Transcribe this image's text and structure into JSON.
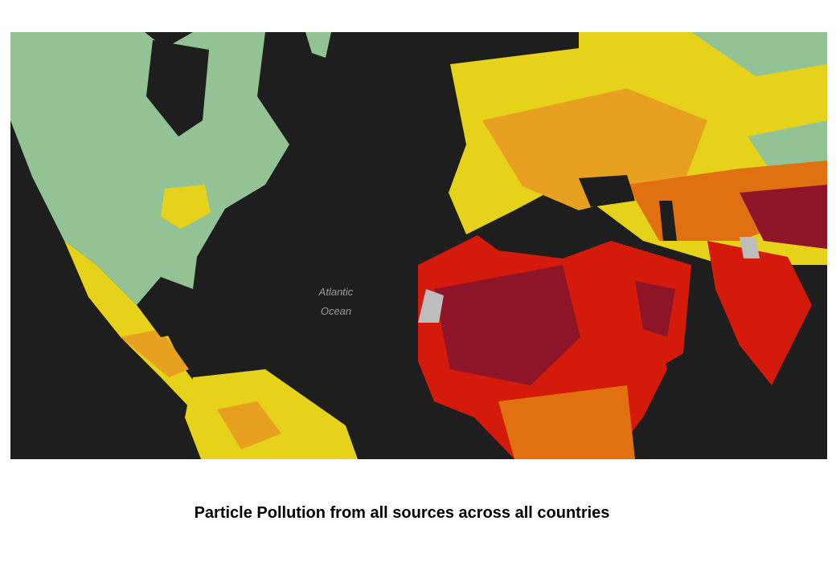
{
  "map": {
    "ocean_label": [
      "Atlantic",
      "Ocean"
    ]
  },
  "caption": "Particle Pollution from all sources across all countries"
}
